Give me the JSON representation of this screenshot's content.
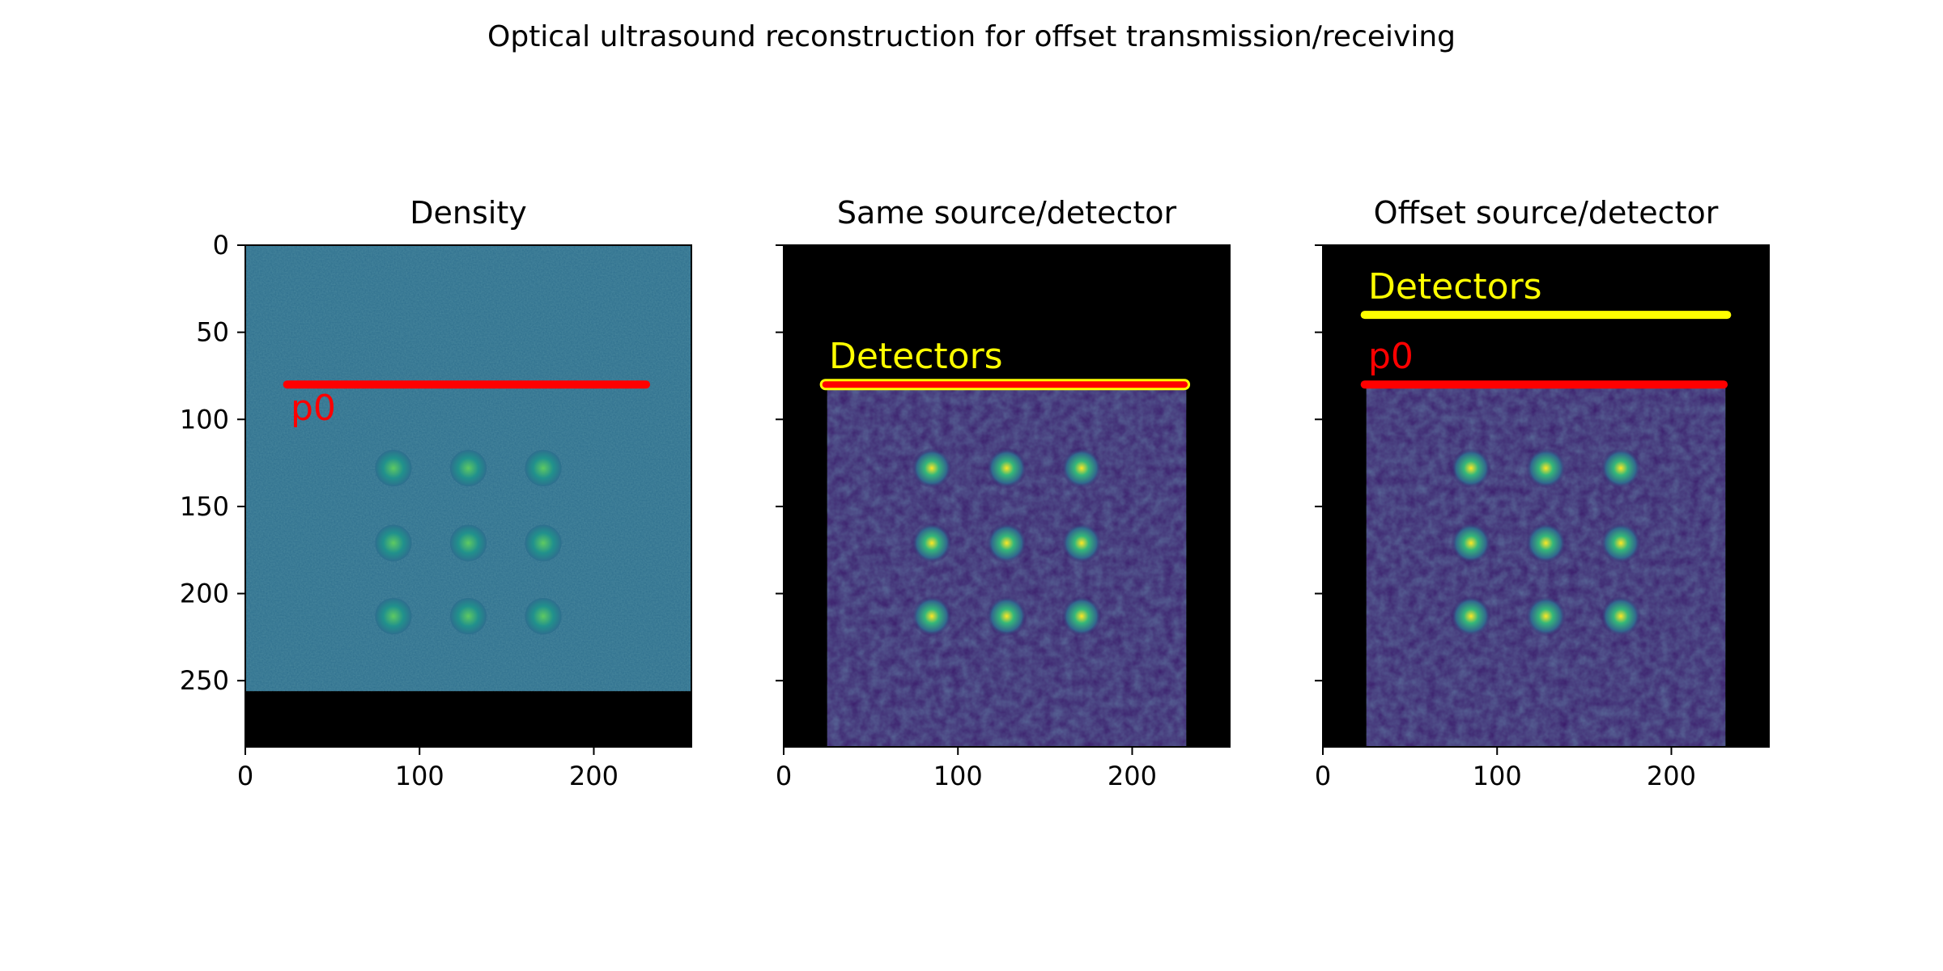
{
  "figure": {
    "title": "Optical ultrasound reconstruction for offset transmission/receiving"
  },
  "chart_data": [
    {
      "type": "heatmap",
      "title": "Density",
      "xlim": [
        0,
        256
      ],
      "ylim": [
        288,
        0
      ],
      "xticks": [
        0,
        100,
        200
      ],
      "yticks": [
        0,
        50,
        100,
        150,
        200,
        250
      ],
      "image_extent": {
        "x": [
          0,
          256
        ],
        "y": [
          0,
          256
        ]
      },
      "background": "#2e6f8e",
      "canvas_color": "#000000",
      "colormap": "viridis",
      "inclusions": [
        {
          "x": 85,
          "y": 128
        },
        {
          "x": 128,
          "y": 128
        },
        {
          "x": 171,
          "y": 128
        },
        {
          "x": 85,
          "y": 171
        },
        {
          "x": 128,
          "y": 171
        },
        {
          "x": 171,
          "y": 171
        },
        {
          "x": 85,
          "y": 213
        },
        {
          "x": 128,
          "y": 213
        },
        {
          "x": 171,
          "y": 213
        }
      ],
      "inclusion_radius": 10,
      "lines": [
        {
          "label": "p0",
          "x": [
            24,
            230
          ],
          "y": 80,
          "color": "#ff0000"
        }
      ]
    },
    {
      "type": "heatmap",
      "title": "Same source/detector",
      "xlim": [
        0,
        256
      ],
      "ylim": [
        288,
        0
      ],
      "xticks": [
        0,
        100,
        200
      ],
      "yticks": [
        0,
        50,
        100,
        150,
        200,
        250
      ],
      "show_ytick_labels": false,
      "image_extent": {
        "x": [
          25,
          231
        ],
        "y": [
          81,
          288
        ]
      },
      "background": "#3b1c6b",
      "canvas_color": "#000000",
      "colormap": "viridis",
      "inclusions": [
        {
          "x": 85,
          "y": 128
        },
        {
          "x": 128,
          "y": 128
        },
        {
          "x": 171,
          "y": 128
        },
        {
          "x": 85,
          "y": 171
        },
        {
          "x": 128,
          "y": 171
        },
        {
          "x": 171,
          "y": 171
        },
        {
          "x": 85,
          "y": 213
        },
        {
          "x": 128,
          "y": 213
        },
        {
          "x": 171,
          "y": 213
        }
      ],
      "inclusion_radius": 11,
      "lines": [
        {
          "label": "Detectors",
          "x": [
            24,
            230
          ],
          "y": 80,
          "color": "#ffff00",
          "fill": "#ff0000"
        }
      ]
    },
    {
      "type": "heatmap",
      "title": "Offset source/detector",
      "xlim": [
        0,
        256
      ],
      "ylim": [
        288,
        0
      ],
      "xticks": [
        0,
        100,
        200
      ],
      "yticks": [
        0,
        50,
        100,
        150,
        200,
        250
      ],
      "show_ytick_labels": false,
      "image_extent": {
        "x": [
          25,
          231
        ],
        "y": [
          81,
          288
        ]
      },
      "background": "#3b1c6b",
      "canvas_color": "#000000",
      "colormap": "viridis",
      "inclusions": [
        {
          "x": 85,
          "y": 128
        },
        {
          "x": 128,
          "y": 128
        },
        {
          "x": 171,
          "y": 128
        },
        {
          "x": 85,
          "y": 171
        },
        {
          "x": 128,
          "y": 171
        },
        {
          "x": 171,
          "y": 171
        },
        {
          "x": 85,
          "y": 213
        },
        {
          "x": 128,
          "y": 213
        },
        {
          "x": 171,
          "y": 213
        }
      ],
      "inclusion_radius": 11,
      "lines": [
        {
          "label": "Detectors",
          "x": [
            24,
            232
          ],
          "y": 40,
          "color": "#ffff00"
        },
        {
          "label": "p0",
          "x": [
            24,
            230
          ],
          "y": 80,
          "color": "#ff0000"
        }
      ]
    }
  ]
}
